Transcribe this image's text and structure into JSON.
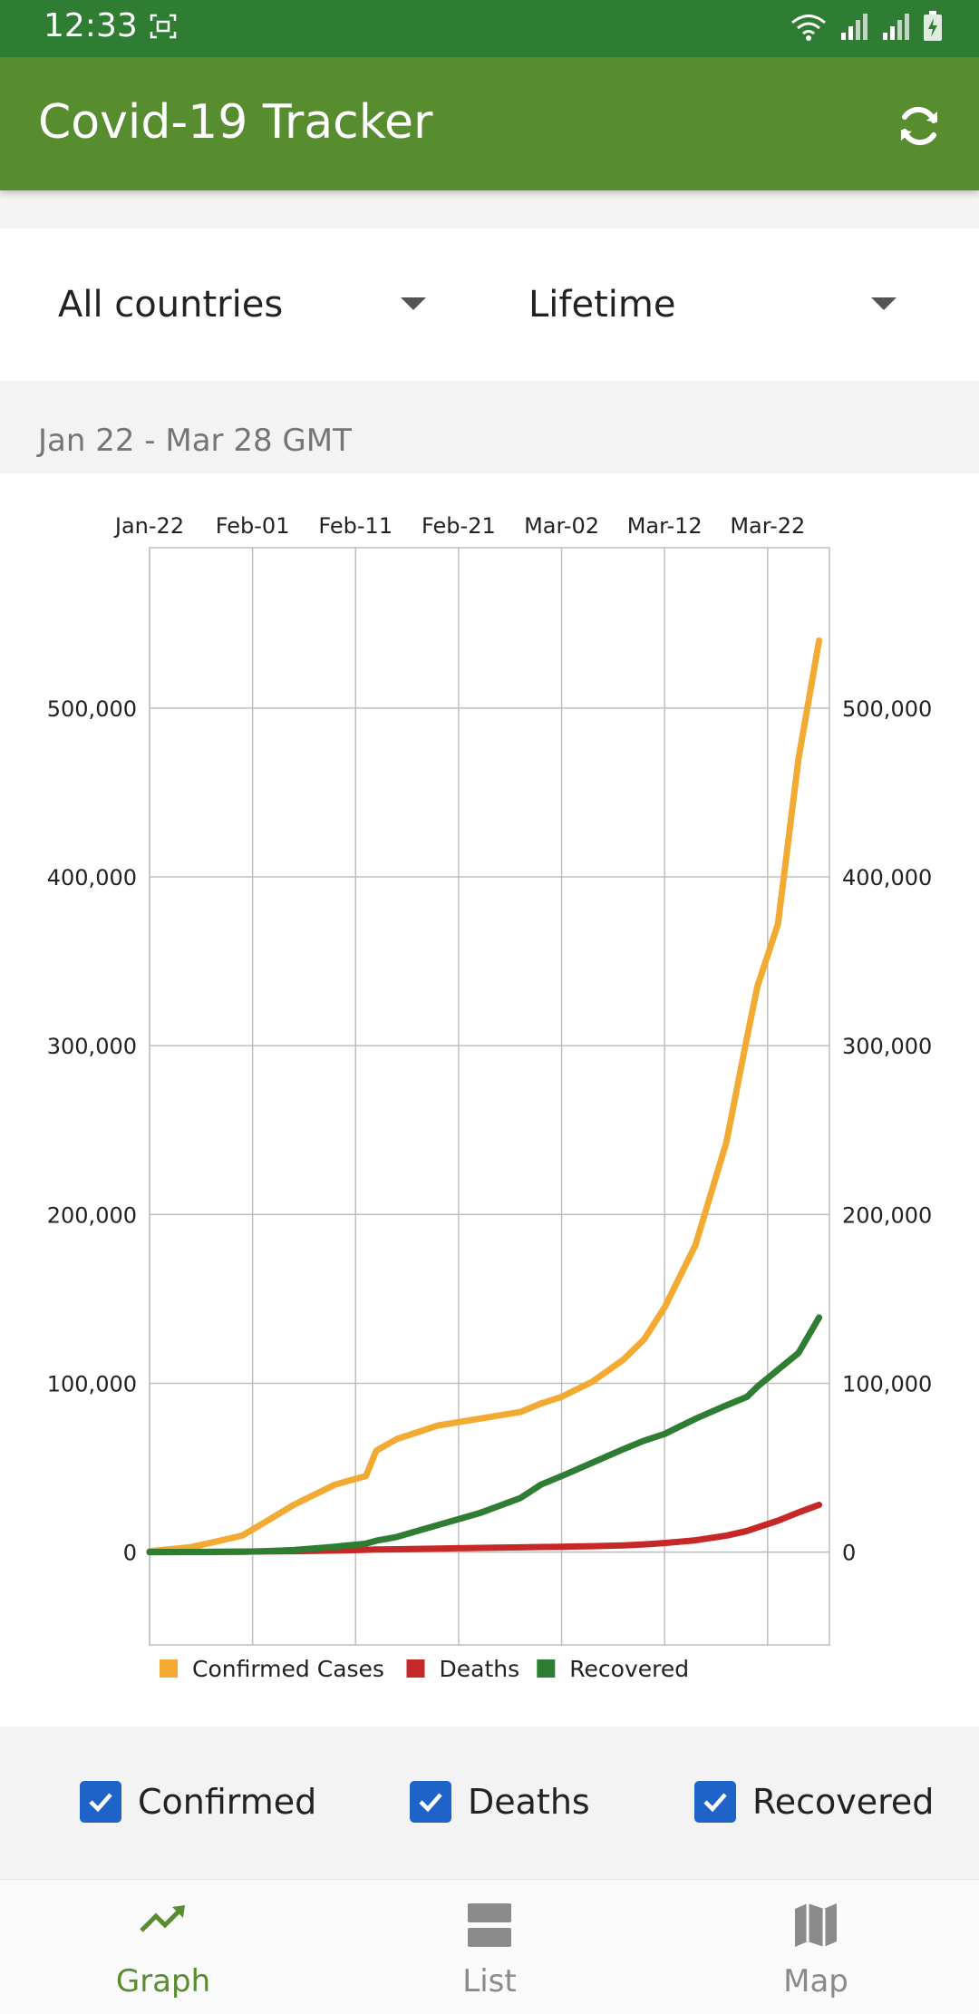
{
  "status_bar": {
    "time": "12:33"
  },
  "app_bar": {
    "title": "Covid-19 Tracker"
  },
  "filters": {
    "country": "All countries",
    "period": "Lifetime"
  },
  "date_range": "Jan 22 - Mar 28 GMT",
  "colors": {
    "status_bar": "#2e7d32",
    "app_bar": "#578c2f",
    "confirmed": "#f2aa33",
    "deaths": "#c62828",
    "recovered": "#2e7d32",
    "checkbox": "#1e63c7",
    "nav_active": "#578c2f",
    "nav_inactive": "#8a8a8a"
  },
  "checkboxes": [
    {
      "label": "Confirmed",
      "checked": true
    },
    {
      "label": "Deaths",
      "checked": true
    },
    {
      "label": "Recovered",
      "checked": true
    }
  ],
  "bottom_nav": [
    {
      "label": "Graph",
      "icon": "trending-up-icon",
      "active": true
    },
    {
      "label": "List",
      "icon": "list-icon",
      "active": false
    },
    {
      "label": "Map",
      "icon": "map-icon",
      "active": false
    }
  ],
  "chart_data": {
    "type": "line",
    "title": "",
    "xlabel": "",
    "ylabel": "",
    "x_axis_position": "top",
    "x_ticks": [
      "Jan-22",
      "Feb-01",
      "Feb-11",
      "Feb-21",
      "Mar-02",
      "Mar-12",
      "Mar-22"
    ],
    "x_tick_days": [
      0,
      10,
      20,
      30,
      40,
      50,
      60
    ],
    "y_ticks": [
      0,
      100000,
      200000,
      300000,
      400000,
      500000
    ],
    "y_tick_labels": [
      "0",
      "100,000",
      "200,000",
      "300,000",
      "400,000",
      "500,000"
    ],
    "ylim": [
      -55000,
      595000
    ],
    "x_dates": [
      "Jan-22",
      "Jan-26",
      "Jan-28",
      "Jan-31",
      "Feb-02",
      "Feb-05",
      "Feb-09",
      "Feb-12",
      "Feb-13",
      "Feb-15",
      "Feb-19",
      "Feb-23",
      "Feb-27",
      "Mar-01",
      "Mar-03",
      "Mar-06",
      "Mar-09",
      "Mar-11",
      "Mar-13",
      "Mar-16",
      "Mar-19",
      "Mar-21",
      "Mar-22",
      "Mar-24",
      "Mar-26",
      "Mar-28"
    ],
    "grid": true,
    "legend": "bottom",
    "series": [
      {
        "name": "Confirmed Cases",
        "color": "#f2aa33",
        "values": [
          555,
          2900,
          5600,
          9800,
          17000,
          28000,
          40000,
          45000,
          60000,
          67000,
          75000,
          79000,
          83000,
          88000,
          92000,
          101000,
          114000,
          126000,
          145000,
          182000,
          243000,
          305000,
          335000,
          372000,
          470000,
          540000
        ]
      },
      {
        "name": "Deaths",
        "color": "#c62828",
        "values": [
          17,
          80,
          131,
          259,
          362,
          565,
          905,
          1363,
          1500,
          1700,
          2100,
          2500,
          2800,
          3000,
          3200,
          3500,
          4000,
          4600,
          5400,
          7000,
          9800,
          12500,
          14600,
          18600,
          23500,
          28000
        ]
      },
      {
        "name": "Recovered",
        "color": "#2e7d32",
        "values": [
          28,
          50,
          100,
          200,
          500,
          1200,
          3200,
          5000,
          6700,
          9000,
          16000,
          23000,
          32000,
          40000,
          45000,
          53000,
          61000,
          66000,
          70000,
          79000,
          87000,
          92000,
          98000,
          108000,
          118000,
          139000
        ]
      }
    ]
  }
}
